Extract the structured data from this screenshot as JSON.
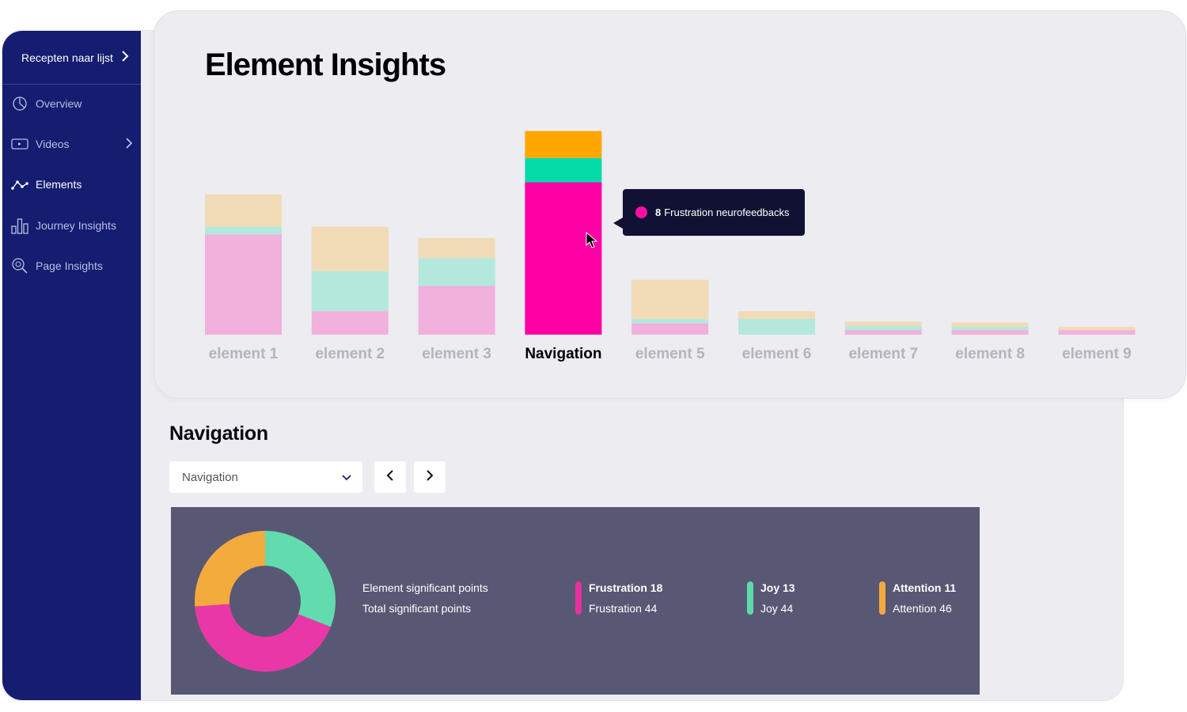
{
  "sidebar": {
    "project": "Recepten naar lijst",
    "items": [
      {
        "label": "Overview",
        "icon": "pie-chart-icon",
        "active": false
      },
      {
        "label": "Videos",
        "icon": "video-icon",
        "active": false,
        "has_submenu": true
      },
      {
        "label": "Elements",
        "icon": "line-graph-icon",
        "active": true
      },
      {
        "label": "Journey Insights",
        "icon": "bar-chart-icon",
        "active": false
      },
      {
        "label": "Page Insights",
        "icon": "magnifier-icon",
        "active": false
      }
    ]
  },
  "insights": {
    "title": "Element Insights",
    "tooltip": {
      "count": "8",
      "text": "Frustration neurofeedbacks"
    }
  },
  "chart_data": {
    "type": "bar",
    "stacked": true,
    "categories": [
      "element 1",
      "element 2",
      "element 3",
      "Navigation",
      "element 5",
      "element 6",
      "element 7",
      "element 8",
      "element 9"
    ],
    "highlighted": "Navigation",
    "series": [
      {
        "key": "frustration",
        "values": [
          11.5,
          2.7,
          5.6,
          17.5,
          1.3,
          0,
          0.5,
          0.5,
          0.5
        ],
        "color": "#f2b0dc",
        "highlight_color": "#ff00a5"
      },
      {
        "key": "joy",
        "values": [
          0.9,
          4.6,
          3.2,
          2.8,
          0.5,
          1.8,
          0.5,
          0.4,
          0
        ],
        "color": "#b4e8dd",
        "highlight_color": "#05dba8"
      },
      {
        "key": "attention",
        "values": [
          3.7,
          5.1,
          2.3,
          3.1,
          4.5,
          0.9,
          0.5,
          0.5,
          0.4
        ],
        "color": "#f1dbb6",
        "highlight_color": "#ffa700"
      }
    ],
    "ylim": [
      0,
      24
    ],
    "grid": false,
    "legend": "none"
  },
  "detail": {
    "title": "Navigation",
    "select_value": "Navigation",
    "labels": {
      "element": "Element significant points",
      "total": "Total significant points"
    },
    "groups": [
      {
        "name": "frustration",
        "line1": "Frustration 18",
        "line2": "Frustration 44",
        "color": "#e6309e"
      },
      {
        "name": "joy",
        "line1": "Joy 13",
        "line2": "Joy 44",
        "color": "#5fdbaa"
      },
      {
        "name": "attention",
        "line1": "Attention 11",
        "line2": "Attention 46",
        "color": "#f4a93a"
      }
    ],
    "donut": [
      {
        "name": "Joy",
        "value": 13,
        "color": "#62dbae"
      },
      {
        "name": "Frustration",
        "value": 18,
        "color": "#ea37a8"
      },
      {
        "name": "Attention",
        "value": 11,
        "color": "#f3ab3d"
      }
    ]
  }
}
